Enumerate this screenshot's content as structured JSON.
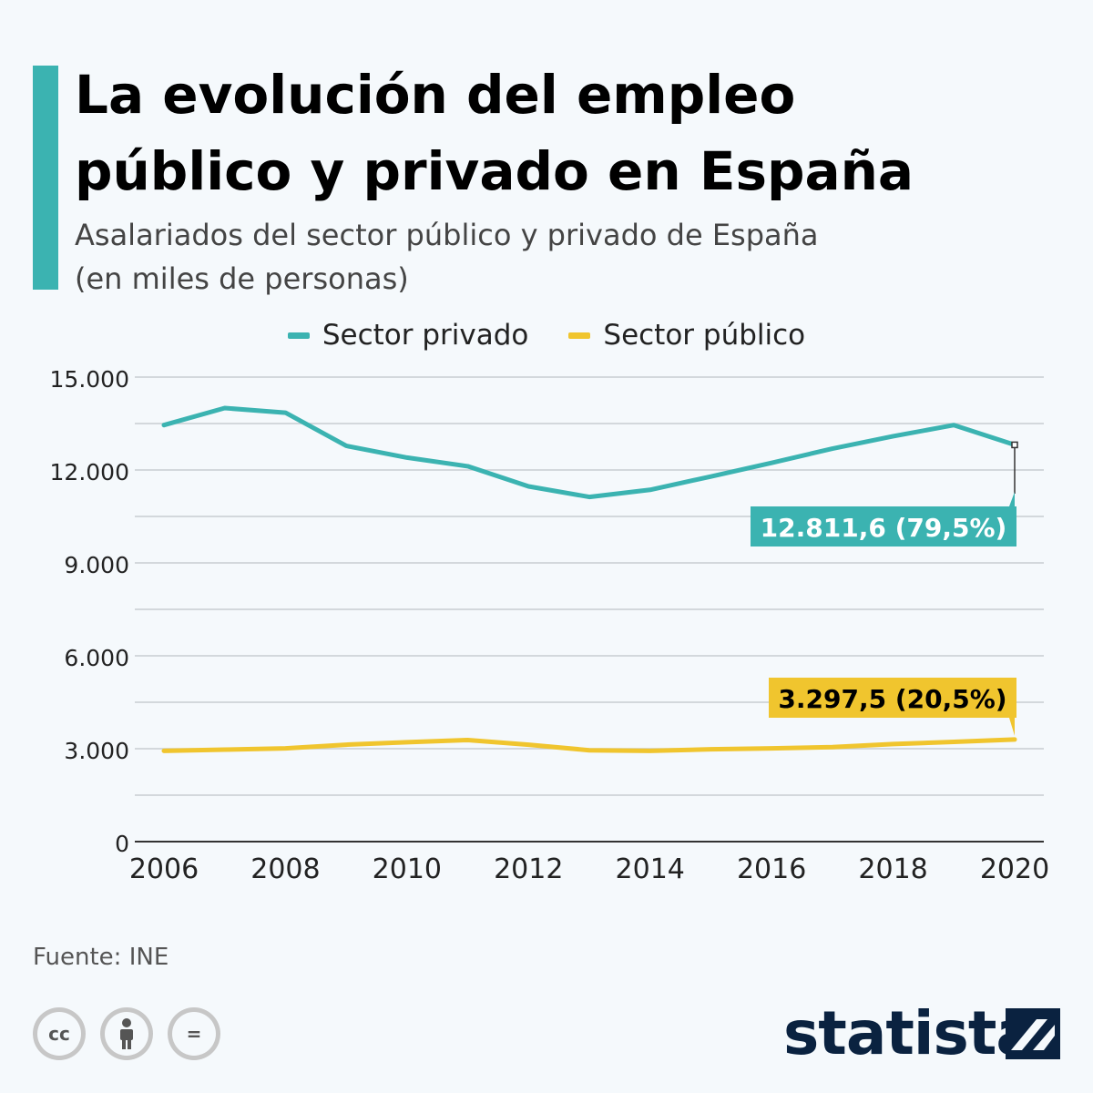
{
  "header": {
    "title_line1": "La evolución del empleo",
    "title_line2": "público y privado en España",
    "subtitle_line1": "Asalariados del sector público y privado de España",
    "subtitle_line2": "(en miles de personas)"
  },
  "colors": {
    "accent": "#3bb3b1",
    "privado": "#3bb3b1",
    "publico": "#f0c52e",
    "grid": "#c8cdd2",
    "axis": "#333333"
  },
  "chart_data": {
    "type": "line",
    "title": "La evolución del empleo público y privado en España",
    "subtitle": "Asalariados del sector público y privado de España (en miles de personas)",
    "x": [
      2006,
      2007,
      2008,
      2009,
      2010,
      2011,
      2012,
      2013,
      2014,
      2015,
      2016,
      2017,
      2018,
      2019,
      2020
    ],
    "x_ticks": [
      "2006",
      "2008",
      "2010",
      "2012",
      "2014",
      "2016",
      "2018",
      "2020"
    ],
    "y_ticks": [
      "0",
      "3.000",
      "6.000",
      "9.000",
      "12.000",
      "15.000"
    ],
    "y_tick_values": [
      0,
      3000,
      6000,
      9000,
      12000,
      15000
    ],
    "ylim": [
      0,
      15000
    ],
    "xlim": [
      2006,
      2020
    ],
    "grid": true,
    "legend_position": "top",
    "series": [
      {
        "name": "Sector privado",
        "color": "#3bb3b1",
        "values": [
          13450,
          14000,
          13850,
          12780,
          12400,
          12120,
          11470,
          11130,
          11360,
          11790,
          12230,
          12690,
          13090,
          13450,
          12811.6
        ],
        "end_label": "12.811,6 (79,5%)"
      },
      {
        "name": "Sector público",
        "color": "#f0c52e",
        "values": [
          2930,
          2970,
          3010,
          3130,
          3210,
          3280,
          3130,
          2950,
          2930,
          2980,
          3010,
          3050,
          3150,
          3220,
          3297.5
        ],
        "end_label": "3.297,5 (20,5%)"
      }
    ]
  },
  "footer": {
    "source": "Fuente: INE",
    "brand": "statista",
    "license_icons": [
      "cc-icon",
      "by-attribution-icon",
      "nd-no-derivatives-icon"
    ],
    "license_labels": [
      "cc",
      "="
    ]
  }
}
